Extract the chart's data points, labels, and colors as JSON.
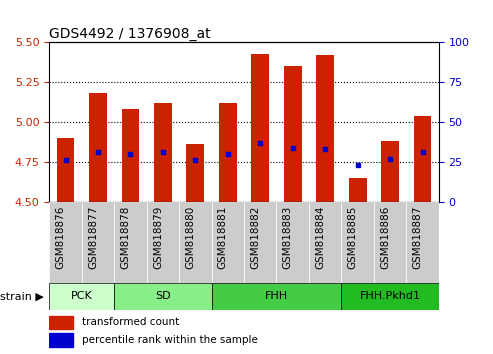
{
  "title": "GDS4492 / 1376908_at",
  "samples": [
    "GSM818876",
    "GSM818877",
    "GSM818878",
    "GSM818879",
    "GSM818880",
    "GSM818881",
    "GSM818882",
    "GSM818883",
    "GSM818884",
    "GSM818885",
    "GSM818886",
    "GSM818887"
  ],
  "bar_values": [
    4.9,
    5.18,
    5.08,
    5.12,
    4.86,
    5.12,
    5.43,
    5.35,
    5.42,
    4.65,
    4.88,
    5.04
  ],
  "blue_dot_values": [
    4.76,
    4.81,
    4.8,
    4.81,
    4.76,
    4.8,
    4.87,
    4.84,
    4.83,
    4.73,
    4.77,
    4.81
  ],
  "bar_bottom": 4.5,
  "ylim_left": [
    4.5,
    5.5
  ],
  "ylim_right": [
    0,
    100
  ],
  "yticks_left": [
    4.5,
    4.75,
    5.0,
    5.25,
    5.5
  ],
  "yticks_right": [
    0,
    25,
    50,
    75,
    100
  ],
  "grid_values": [
    4.75,
    5.0,
    5.25
  ],
  "bar_color": "#CC2200",
  "dot_color": "#0000CC",
  "groups": [
    {
      "label": "PCK",
      "start": 0,
      "end": 2,
      "color": "#CCFFCC"
    },
    {
      "label": "SD",
      "start": 2,
      "end": 5,
      "color": "#88EE88"
    },
    {
      "label": "FHH",
      "start": 5,
      "end": 9,
      "color": "#44CC44"
    },
    {
      "label": "FHH.Pkhd1",
      "start": 9,
      "end": 12,
      "color": "#22BB22"
    }
  ],
  "strain_label": "strain",
  "legend_items": [
    {
      "label": "transformed count",
      "color": "#CC2200"
    },
    {
      "label": "percentile rank within the sample",
      "color": "#0000CC"
    }
  ],
  "left_tick_color": "#CC2200",
  "right_tick_color": "#0000CC",
  "title_fontsize": 10,
  "tick_fontsize": 7.5,
  "bar_width": 0.55,
  "xtick_bg_color": "#CCCCCC"
}
